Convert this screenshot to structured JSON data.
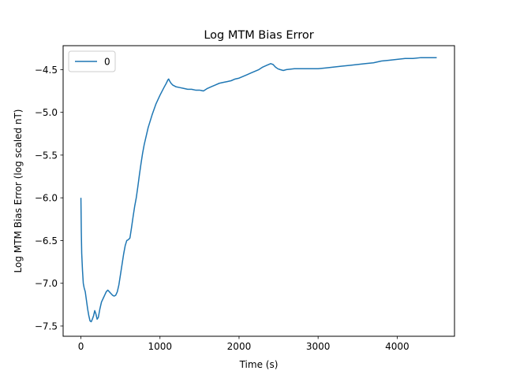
{
  "chart_data": {
    "type": "line",
    "title": "Log MTM Bias Error",
    "xlabel": "Time (s)",
    "ylabel": "Log MTM Bias Error (log scaled nT)",
    "xlim": [
      -225,
      4725
    ],
    "ylim": [
      -7.62,
      -4.22
    ],
    "xticks": [
      0,
      1000,
      2000,
      3000,
      4000
    ],
    "xtick_labels": [
      "0",
      "1000",
      "2000",
      "3000",
      "4000"
    ],
    "yticks": [
      -7.5,
      -7.0,
      -6.5,
      -6.0,
      -5.5,
      -5.0,
      -4.5
    ],
    "ytick_labels": [
      "−7.5",
      "−7.0",
      "−6.5",
      "−6.0",
      "−5.5",
      "−5.0",
      "−4.5"
    ],
    "grid": false,
    "legend_position": "upper-left",
    "series": [
      {
        "name": "0",
        "color": "#1f77b4",
        "points": [
          [
            0,
            -6.0
          ],
          [
            5,
            -6.4
          ],
          [
            10,
            -6.65
          ],
          [
            20,
            -6.85
          ],
          [
            30,
            -7.0
          ],
          [
            40,
            -7.05
          ],
          [
            55,
            -7.1
          ],
          [
            70,
            -7.2
          ],
          [
            85,
            -7.3
          ],
          [
            100,
            -7.38
          ],
          [
            115,
            -7.44
          ],
          [
            130,
            -7.45
          ],
          [
            145,
            -7.42
          ],
          [
            160,
            -7.38
          ],
          [
            175,
            -7.32
          ],
          [
            190,
            -7.36
          ],
          [
            205,
            -7.42
          ],
          [
            220,
            -7.4
          ],
          [
            240,
            -7.3
          ],
          [
            260,
            -7.22
          ],
          [
            280,
            -7.18
          ],
          [
            300,
            -7.14
          ],
          [
            320,
            -7.1
          ],
          [
            340,
            -7.08
          ],
          [
            360,
            -7.1
          ],
          [
            380,
            -7.12
          ],
          [
            400,
            -7.14
          ],
          [
            420,
            -7.15
          ],
          [
            440,
            -7.14
          ],
          [
            460,
            -7.1
          ],
          [
            480,
            -7.02
          ],
          [
            500,
            -6.9
          ],
          [
            520,
            -6.78
          ],
          [
            540,
            -6.66
          ],
          [
            560,
            -6.56
          ],
          [
            580,
            -6.5
          ],
          [
            600,
            -6.49
          ],
          [
            620,
            -6.47
          ],
          [
            640,
            -6.35
          ],
          [
            660,
            -6.22
          ],
          [
            680,
            -6.1
          ],
          [
            700,
            -6.0
          ],
          [
            720,
            -5.87
          ],
          [
            740,
            -5.73
          ],
          [
            760,
            -5.6
          ],
          [
            780,
            -5.48
          ],
          [
            800,
            -5.38
          ],
          [
            850,
            -5.18
          ],
          [
            900,
            -5.03
          ],
          [
            950,
            -4.9
          ],
          [
            1000,
            -4.8
          ],
          [
            1050,
            -4.71
          ],
          [
            1080,
            -4.66
          ],
          [
            1100,
            -4.62
          ],
          [
            1110,
            -4.61
          ],
          [
            1120,
            -4.63
          ],
          [
            1140,
            -4.66
          ],
          [
            1160,
            -4.68
          ],
          [
            1200,
            -4.7
          ],
          [
            1250,
            -4.71
          ],
          [
            1300,
            -4.72
          ],
          [
            1350,
            -4.73
          ],
          [
            1400,
            -4.73
          ],
          [
            1450,
            -4.74
          ],
          [
            1500,
            -4.74
          ],
          [
            1550,
            -4.75
          ],
          [
            1600,
            -4.72
          ],
          [
            1650,
            -4.7
          ],
          [
            1700,
            -4.68
          ],
          [
            1750,
            -4.66
          ],
          [
            1800,
            -4.65
          ],
          [
            1850,
            -4.64
          ],
          [
            1900,
            -4.63
          ],
          [
            1950,
            -4.61
          ],
          [
            2000,
            -4.6
          ],
          [
            2050,
            -4.58
          ],
          [
            2100,
            -4.56
          ],
          [
            2150,
            -4.54
          ],
          [
            2200,
            -4.52
          ],
          [
            2250,
            -4.5
          ],
          [
            2300,
            -4.47
          ],
          [
            2350,
            -4.45
          ],
          [
            2400,
            -4.43
          ],
          [
            2430,
            -4.44
          ],
          [
            2460,
            -4.47
          ],
          [
            2490,
            -4.49
          ],
          [
            2520,
            -4.5
          ],
          [
            2560,
            -4.51
          ],
          [
            2600,
            -4.5
          ],
          [
            2700,
            -4.49
          ],
          [
            2800,
            -4.49
          ],
          [
            2900,
            -4.49
          ],
          [
            3000,
            -4.49
          ],
          [
            3100,
            -4.48
          ],
          [
            3200,
            -4.47
          ],
          [
            3300,
            -4.46
          ],
          [
            3400,
            -4.45
          ],
          [
            3500,
            -4.44
          ],
          [
            3600,
            -4.43
          ],
          [
            3700,
            -4.42
          ],
          [
            3800,
            -4.4
          ],
          [
            3900,
            -4.39
          ],
          [
            4000,
            -4.38
          ],
          [
            4100,
            -4.37
          ],
          [
            4200,
            -4.37
          ],
          [
            4300,
            -4.36
          ],
          [
            4400,
            -4.36
          ],
          [
            4500,
            -4.36
          ]
        ]
      }
    ]
  }
}
